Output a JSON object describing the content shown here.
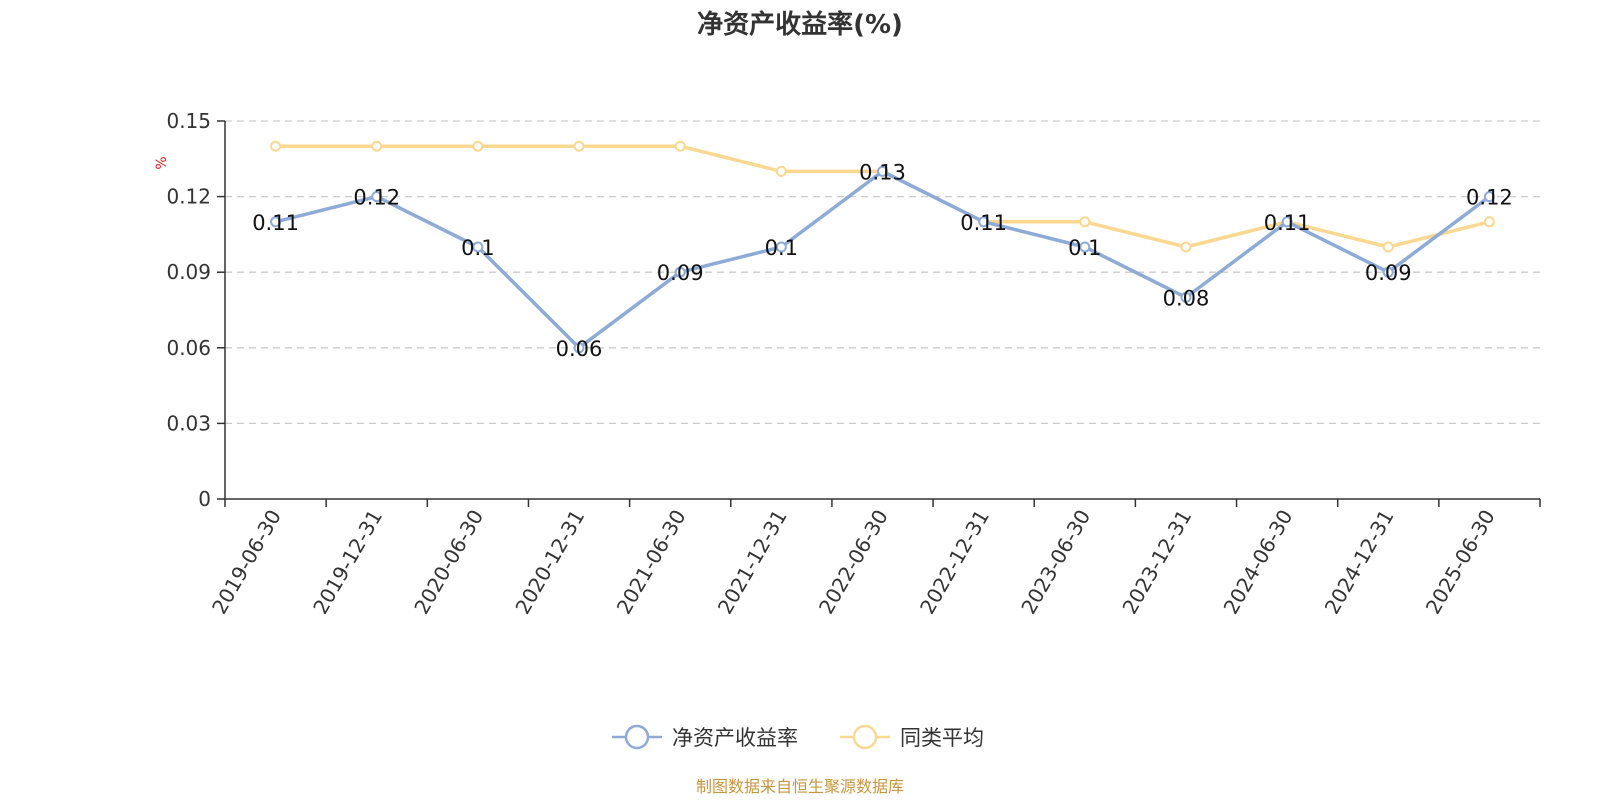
{
  "chart_data": {
    "type": "line",
    "title": "净资产收益率(%)",
    "ylabel": "%",
    "ylim": [
      0,
      0.15
    ],
    "yticks": [
      0,
      0.03,
      0.06,
      0.09,
      0.12,
      0.15
    ],
    "ytick_labels": [
      "0",
      "0.03",
      "0.06",
      "0.09",
      "0.12",
      "0.15"
    ],
    "categories": [
      "2019-06-30",
      "2019-12-31",
      "2020-06-30",
      "2020-12-31",
      "2021-06-30",
      "2021-12-31",
      "2022-06-30",
      "2022-12-31",
      "2023-06-30",
      "2023-12-31",
      "2024-06-30",
      "2024-12-31",
      "2025-06-30"
    ],
    "series": [
      {
        "name": "净资产收益率",
        "color": "#8eaad6",
        "values": [
          0.11,
          0.12,
          0.1,
          0.06,
          0.09,
          0.1,
          0.13,
          0.11,
          0.1,
          0.08,
          0.11,
          0.09,
          0.12
        ],
        "labels": [
          "0.11",
          "0.12",
          "0.1",
          "0.06",
          "0.09",
          "0.1",
          "0.13",
          "0.11",
          "0.1",
          "0.08",
          "0.11",
          "0.09",
          "0.12"
        ]
      },
      {
        "name": "同类平均",
        "color": "#fad892",
        "values": [
          0.14,
          0.14,
          0.14,
          0.14,
          0.14,
          0.13,
          0.13,
          0.11,
          0.11,
          0.1,
          0.11,
          0.1,
          0.11
        ]
      }
    ],
    "grid": true,
    "legend": "bottom-center",
    "source": "制图数据来自恒生聚源数据库"
  }
}
